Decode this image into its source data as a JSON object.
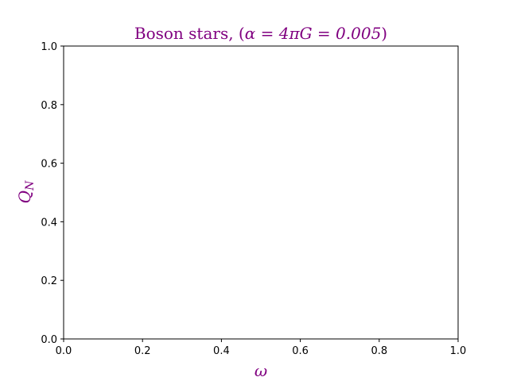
{
  "chart_data": {
    "type": "line",
    "title_prefix": "Boson stars, (",
    "title_math": "α = 4πG = 0.005",
    "title_suffix": ")",
    "title_color": "#800080",
    "xlabel": "ω",
    "ylabel_main": "Q",
    "ylabel_sub": "N",
    "xlim": [
      0.0,
      1.0
    ],
    "ylim": [
      0.0,
      1.0
    ],
    "xticks": [
      0.0,
      0.2,
      0.4,
      0.6,
      0.8,
      1.0
    ],
    "yticks": [
      0.0,
      0.2,
      0.4,
      0.6,
      0.8,
      1.0
    ],
    "xtick_labels": [
      "0.0",
      "0.2",
      "0.4",
      "0.6",
      "0.8",
      "1.0"
    ],
    "ytick_labels": [
      "0.0",
      "0.2",
      "0.4",
      "0.6",
      "0.8",
      "1.0"
    ],
    "series": [],
    "grid": false,
    "label_color": "#800080",
    "axis_color": "#000000"
  }
}
